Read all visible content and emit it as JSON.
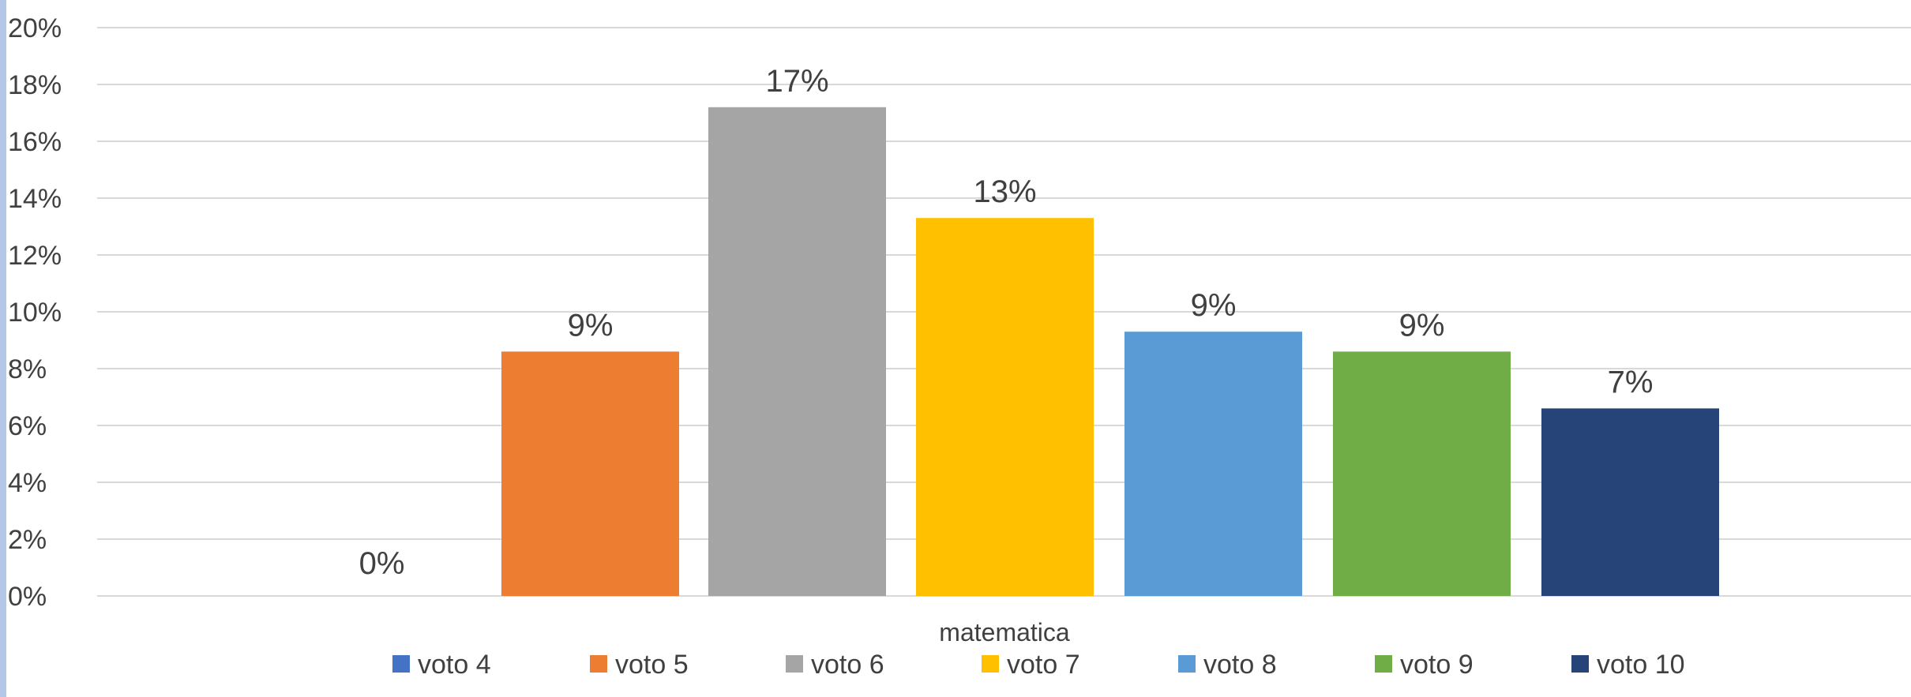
{
  "chart_data": {
    "type": "bar",
    "categories": [
      "matematica"
    ],
    "series": [
      {
        "name": "voto 4",
        "values": [
          0
        ],
        "label": "0%",
        "color": "#4472C4"
      },
      {
        "name": "voto 5",
        "values": [
          8.6
        ],
        "label": "9%",
        "color": "#ED7D31"
      },
      {
        "name": "voto 6",
        "values": [
          17.2
        ],
        "label": "17%",
        "color": "#A5A5A5"
      },
      {
        "name": "voto 7",
        "values": [
          13.3
        ],
        "label": "13%",
        "color": "#FFC000"
      },
      {
        "name": "voto 8",
        "values": [
          9.3
        ],
        "label": "9%",
        "color": "#5B9BD5"
      },
      {
        "name": "voto 9",
        "values": [
          8.6
        ],
        "label": "9%",
        "color": "#70AD47"
      },
      {
        "name": "voto 10",
        "values": [
          6.6
        ],
        "label": "7%",
        "color": "#264478"
      }
    ],
    "title": "",
    "xlabel": "",
    "ylabel": "",
    "ylim": [
      0,
      20
    ],
    "yticks": [
      "0%",
      "2%",
      "4%",
      "6%",
      "8%",
      "10%",
      "12%",
      "14%",
      "16%",
      "18%",
      "20%"
    ],
    "grid": true,
    "legend": "bottom",
    "colors": {
      "grid": "#D9D9D9",
      "text": "#404040",
      "left_accent": "#B4C7E7"
    }
  }
}
